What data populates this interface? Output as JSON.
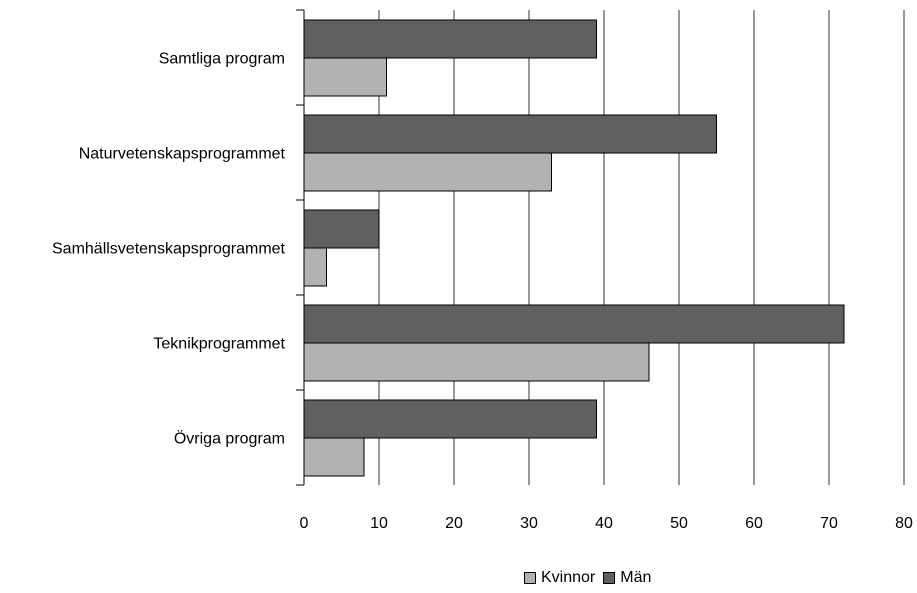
{
  "chart_data": {
    "type": "bar",
    "orientation": "horizontal",
    "title": "",
    "xlabel": "",
    "ylabel": "",
    "categories": [
      "Samtliga program",
      "Naturvetenskapsprogrammet",
      "Samhällsvetenskapsprogrammet",
      "Teknikprogrammet",
      "Övriga program"
    ],
    "series": [
      {
        "name": "Män",
        "color": "#606060",
        "values": [
          39,
          55,
          10,
          72,
          39
        ]
      },
      {
        "name": "Kvinnor",
        "color": "#b2b2b2",
        "values": [
          11,
          33,
          3,
          46,
          8
        ]
      }
    ],
    "xlim": [
      0,
      80
    ],
    "xticks": [
      "0",
      "10",
      "20",
      "30",
      "40",
      "50",
      "60",
      "70",
      "80"
    ],
    "grid": "vertical",
    "legend_position": "bottom",
    "legend": [
      "Kvinnor",
      "Män"
    ]
  }
}
